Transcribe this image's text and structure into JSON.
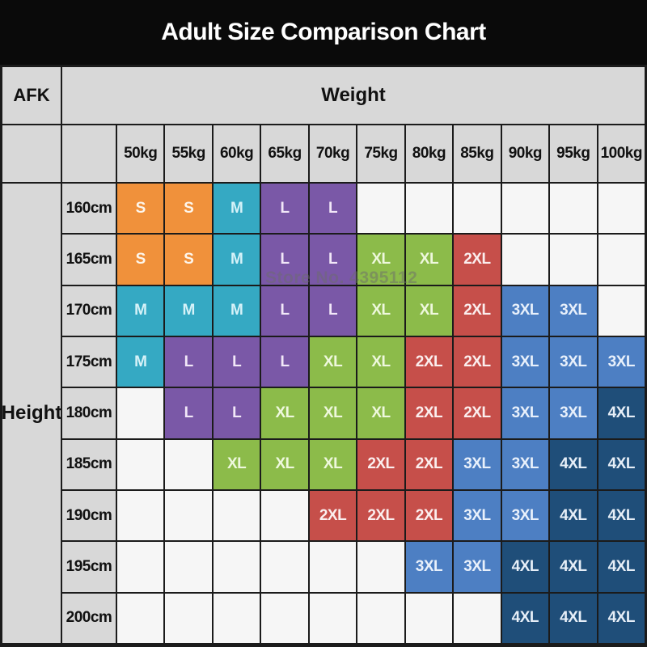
{
  "title": "Adult Size Comparison Chart",
  "corner_label": "AFK",
  "col_group_label": "Weight",
  "row_group_label": "Height",
  "watermark": "Store No. 4395112",
  "colors": {
    "title_bg": "#0a0a0a",
    "title_text": "#ffffff",
    "header_bg": "#d8d8d8",
    "header_text": "#111111",
    "empty_cell_bg": "#f6f6f6",
    "grid_line": "#1b1b1b",
    "size_bg": {
      "S": "#f0913b",
      "M": "#35a9c3",
      "L": "#7a58a7",
      "XL": "#8cbb4a",
      "2XL": "#c64f4a",
      "3XL": "#4d7fc3",
      "4XL": "#1f4e79"
    },
    "size_text": {
      "S": "#fdf6ec",
      "M": "#d6f2f8",
      "L": "#f2e8f8",
      "XL": "#eef8dd",
      "2XL": "#fbeeee",
      "3XL": "#e8f0fb",
      "4XL": "#e6eef7"
    }
  },
  "chart_data": {
    "type": "table",
    "title": "Adult Size Comparison Chart",
    "xlabel": "Weight",
    "ylabel": "Height",
    "columns": [
      "50kg",
      "55kg",
      "60kg",
      "65kg",
      "70kg",
      "75kg",
      "80kg",
      "85kg",
      "90kg",
      "95kg",
      "100kg"
    ],
    "rows": [
      "160cm",
      "165cm",
      "170cm",
      "175cm",
      "180cm",
      "185cm",
      "190cm",
      "195cm",
      "200cm"
    ],
    "values": [
      [
        "S",
        "S",
        "M",
        "L",
        "L",
        "",
        "",
        "",
        "",
        "",
        ""
      ],
      [
        "S",
        "S",
        "M",
        "L",
        "L",
        "XL",
        "XL",
        "2XL",
        "",
        "",
        ""
      ],
      [
        "M",
        "M",
        "M",
        "L",
        "L",
        "XL",
        "XL",
        "2XL",
        "3XL",
        "3XL",
        ""
      ],
      [
        "M",
        "L",
        "L",
        "L",
        "XL",
        "XL",
        "2XL",
        "2XL",
        "3XL",
        "3XL",
        "3XL"
      ],
      [
        "",
        "L",
        "L",
        "XL",
        "XL",
        "XL",
        "2XL",
        "2XL",
        "3XL",
        "3XL",
        "4XL"
      ],
      [
        "",
        "",
        "XL",
        "XL",
        "XL",
        "2XL",
        "2XL",
        "3XL",
        "3XL",
        "4XL",
        "4XL"
      ],
      [
        "",
        "",
        "",
        "",
        "2XL",
        "2XL",
        "2XL",
        "3XL",
        "3XL",
        "4XL",
        "4XL"
      ],
      [
        "",
        "",
        "",
        "",
        "",
        "",
        "3XL",
        "3XL",
        "4XL",
        "4XL",
        "4XL"
      ],
      [
        "",
        "",
        "",
        "",
        "",
        "",
        "",
        "",
        "4XL",
        "4XL",
        "4XL"
      ]
    ],
    "legend": [
      "S",
      "M",
      "L",
      "XL",
      "2XL",
      "3XL",
      "4XL"
    ],
    "grid": true,
    "legend_position": "none"
  }
}
